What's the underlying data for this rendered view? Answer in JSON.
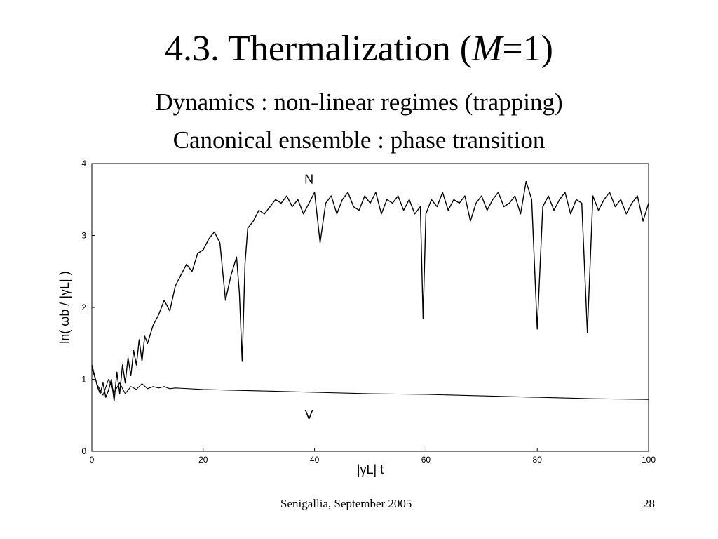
{
  "slide": {
    "title_prefix": "4.3. Thermalization (",
    "title_var": "M",
    "title_suffix": "=1)",
    "subtitle_1": "Dynamics : non-linear regimes (trapping)",
    "subtitle_2": "Canonical ensemble : phase transition",
    "footer_left": "Senigallia, September 2005",
    "footer_right": "28"
  },
  "chart_data": {
    "type": "line",
    "xlim": [
      0,
      100
    ],
    "ylim": [
      0,
      4
    ],
    "x_ticks": [
      "0",
      "20",
      "40",
      "60",
      "80",
      "100"
    ],
    "y_ticks": [
      "0",
      "1",
      "2",
      "3",
      "4"
    ],
    "xlabel": "|γL| t",
    "ylabel": "ln( ωb / |γL| )",
    "grid": false,
    "colors": {
      "line": "#000000",
      "axis": "#000000"
    },
    "annotations": [
      {
        "text": "N",
        "x": 39,
        "y": 3.72
      },
      {
        "text": "V",
        "x": 39,
        "y": 0.45
      }
    ],
    "series": [
      {
        "name": "N",
        "x": [
          0,
          0.5,
          1,
          1.5,
          2,
          2.5,
          3,
          3.5,
          4,
          4.5,
          5,
          5.5,
          6,
          6.5,
          7,
          7.5,
          8,
          8.5,
          9,
          9.5,
          10,
          11,
          12,
          13,
          14,
          15,
          16,
          17,
          18,
          19,
          20,
          21,
          22,
          23,
          24,
          25,
          26,
          26.5,
          27,
          27.5,
          28,
          29,
          30,
          31,
          32,
          33,
          34,
          35,
          36,
          37,
          38,
          39,
          40,
          41,
          42,
          43,
          44,
          45,
          46,
          47,
          48,
          49,
          50,
          51,
          52,
          53,
          54,
          55,
          56,
          57,
          58,
          59,
          59.5,
          60,
          61,
          62,
          63,
          64,
          65,
          66,
          67,
          68,
          69,
          70,
          71,
          72,
          73,
          74,
          75,
          76,
          77,
          78,
          79,
          80,
          81,
          82,
          83,
          84,
          85,
          86,
          87,
          88,
          89,
          90,
          91,
          92,
          93,
          94,
          95,
          96,
          97,
          98,
          99,
          100
        ],
        "y": [
          1.2,
          1.05,
          0.9,
          0.8,
          0.95,
          0.75,
          0.85,
          1.0,
          0.7,
          1.1,
          0.8,
          1.2,
          0.95,
          1.3,
          1.05,
          1.4,
          1.2,
          1.55,
          1.25,
          1.6,
          1.5,
          1.75,
          1.9,
          2.1,
          1.95,
          2.3,
          2.45,
          2.6,
          2.5,
          2.75,
          2.8,
          2.95,
          3.05,
          2.9,
          2.1,
          2.45,
          2.7,
          2.2,
          1.25,
          2.6,
          3.1,
          3.2,
          3.35,
          3.3,
          3.4,
          3.5,
          3.45,
          3.55,
          3.4,
          3.5,
          3.3,
          3.45,
          3.6,
          2.9,
          3.45,
          3.55,
          3.3,
          3.5,
          3.6,
          3.4,
          3.35,
          3.55,
          3.45,
          3.6,
          3.3,
          3.5,
          3.45,
          3.55,
          3.35,
          3.5,
          3.3,
          3.4,
          1.85,
          3.3,
          3.5,
          3.4,
          3.6,
          3.35,
          3.5,
          3.45,
          3.55,
          3.2,
          3.45,
          3.55,
          3.35,
          3.5,
          3.6,
          3.4,
          3.45,
          3.55,
          3.3,
          3.75,
          3.5,
          1.7,
          3.4,
          3.55,
          3.35,
          3.5,
          3.6,
          3.3,
          3.5,
          3.45,
          1.65,
          3.55,
          3.35,
          3.5,
          3.6,
          3.4,
          3.5,
          3.3,
          3.45,
          3.55,
          3.2,
          3.45
        ]
      },
      {
        "name": "V",
        "x": [
          0,
          1,
          2,
          3,
          4,
          5,
          6,
          7,
          8,
          9,
          10,
          11,
          12,
          13,
          14,
          15,
          20,
          30,
          40,
          50,
          60,
          70,
          80,
          90,
          100
        ],
        "y": [
          1.15,
          0.92,
          0.78,
          1.0,
          0.82,
          0.95,
          0.8,
          0.9,
          0.86,
          0.94,
          0.87,
          0.9,
          0.88,
          0.9,
          0.87,
          0.88,
          0.86,
          0.84,
          0.82,
          0.8,
          0.79,
          0.77,
          0.75,
          0.73,
          0.72
        ]
      }
    ]
  }
}
